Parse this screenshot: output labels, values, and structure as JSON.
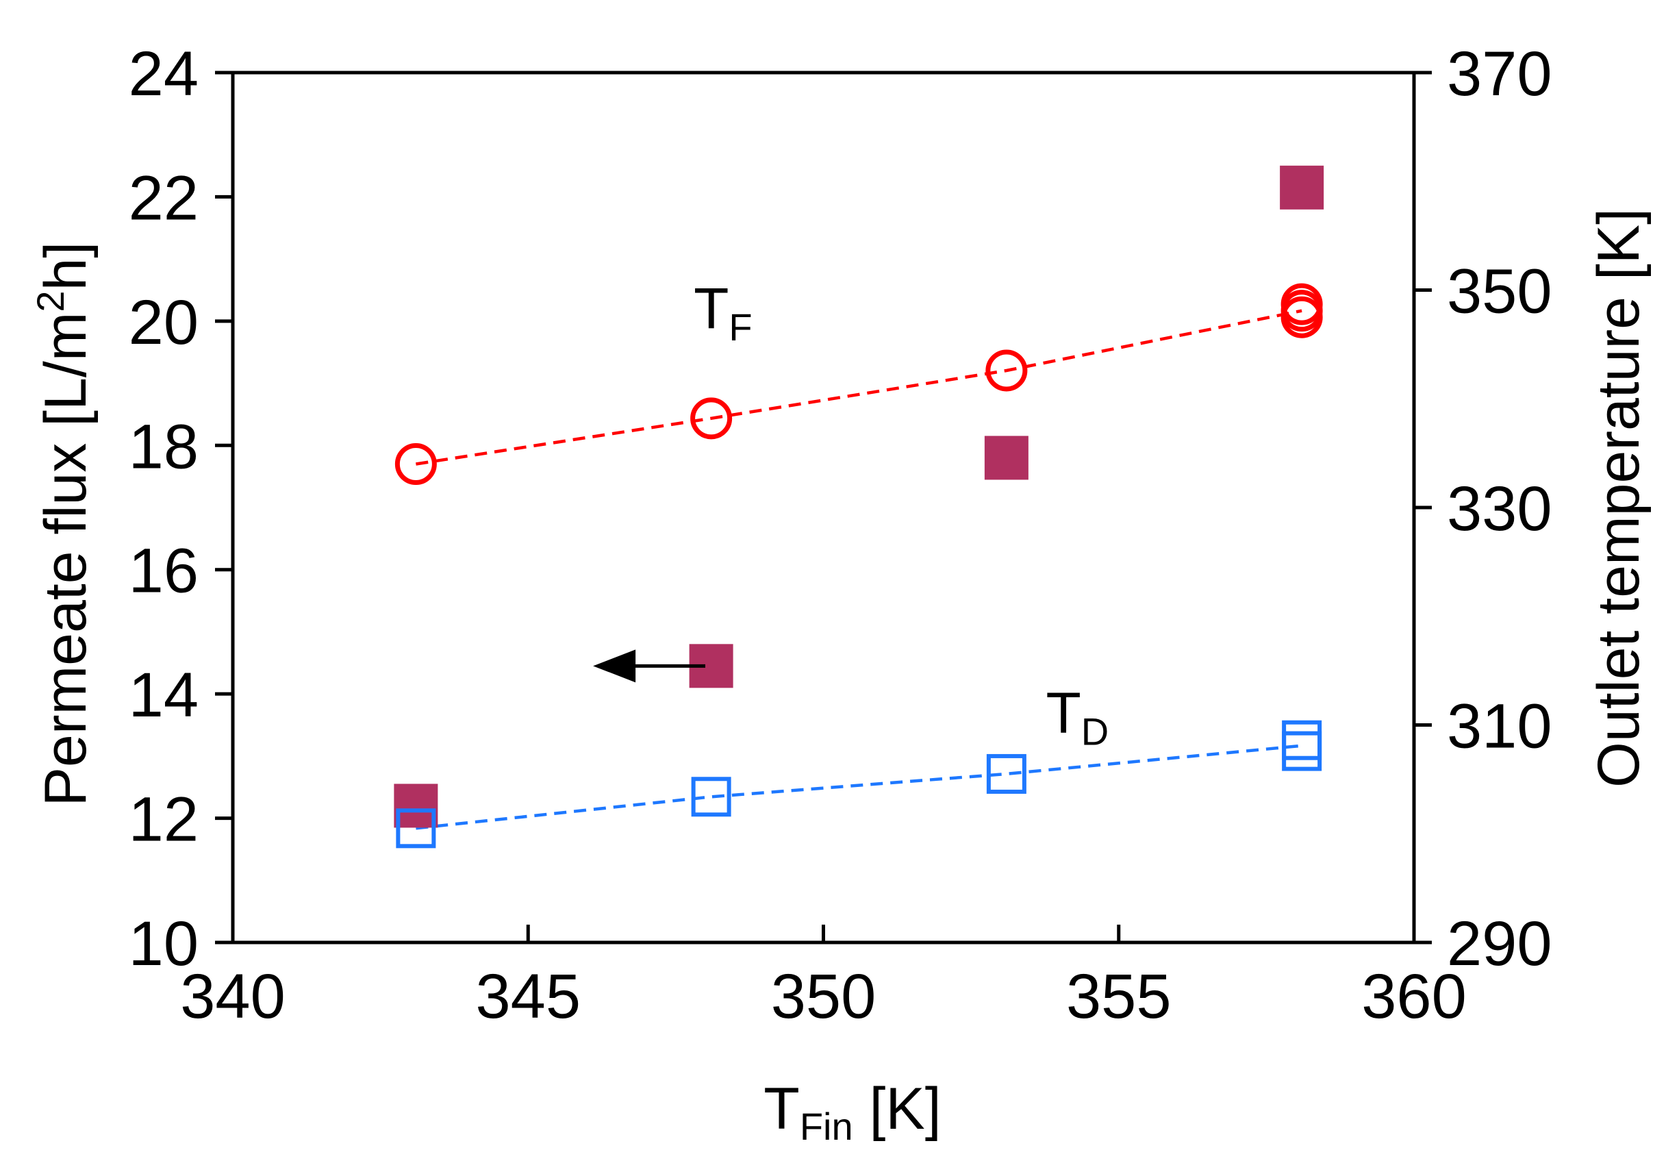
{
  "chart_data": {
    "type": "scatter",
    "title": "",
    "xlabel": {
      "main": "T",
      "sub": "Fin",
      "unit": " [K]"
    },
    "ylabel_left": {
      "pre": "Permeate flux [L/m",
      "sup": "2",
      "post": "h]"
    },
    "ylabel_right": "Outlet temperature [K]",
    "xlim": [
      340,
      360
    ],
    "ylim_left": [
      10,
      24
    ],
    "ylim_right": [
      290,
      370
    ],
    "x_ticks": [
      "340",
      "345",
      "350",
      "355",
      "360"
    ],
    "y_left_ticks": [
      "10",
      "12",
      "14",
      "16",
      "18",
      "20",
      "22",
      "24"
    ],
    "y_right_ticks": [
      "290",
      "310",
      "330",
      "350",
      "370"
    ],
    "series": [
      {
        "name": "Permeate flux",
        "axis": "left",
        "marker": "filled-square",
        "color": "#B03060",
        "x": [
          343.1,
          348.1,
          353.1,
          358.1
        ],
        "y": [
          12.2,
          14.45,
          17.8,
          22.15
        ]
      },
      {
        "name": "T_F",
        "axis": "right",
        "marker": "open-circle",
        "color": "#FF0000",
        "line": "dashed",
        "x": [
          343.1,
          348.1,
          353.1,
          358.1,
          358.1,
          358.1
        ],
        "y": [
          334.0,
          338.2,
          342.6,
          347.5,
          348.1,
          348.7
        ]
      },
      {
        "name": "T_D",
        "axis": "right",
        "marker": "open-square",
        "color": "#1E78FF",
        "line": "dashed",
        "x": [
          343.1,
          348.1,
          353.1,
          358.1,
          358.1
        ],
        "y": [
          300.5,
          303.4,
          305.5,
          307.6,
          308.6
        ]
      }
    ],
    "annotations": {
      "tf": {
        "main": "T",
        "sub": "F",
        "x": 348.3,
        "y_right": 346.5
      },
      "td": {
        "main": "T",
        "sub": "D",
        "x": 354.3,
        "y_right": 309.3
      },
      "arrow": {
        "from_x": 348.0,
        "to_x": 346.1,
        "y_left": 14.45,
        "points_to": "left axis"
      }
    }
  }
}
